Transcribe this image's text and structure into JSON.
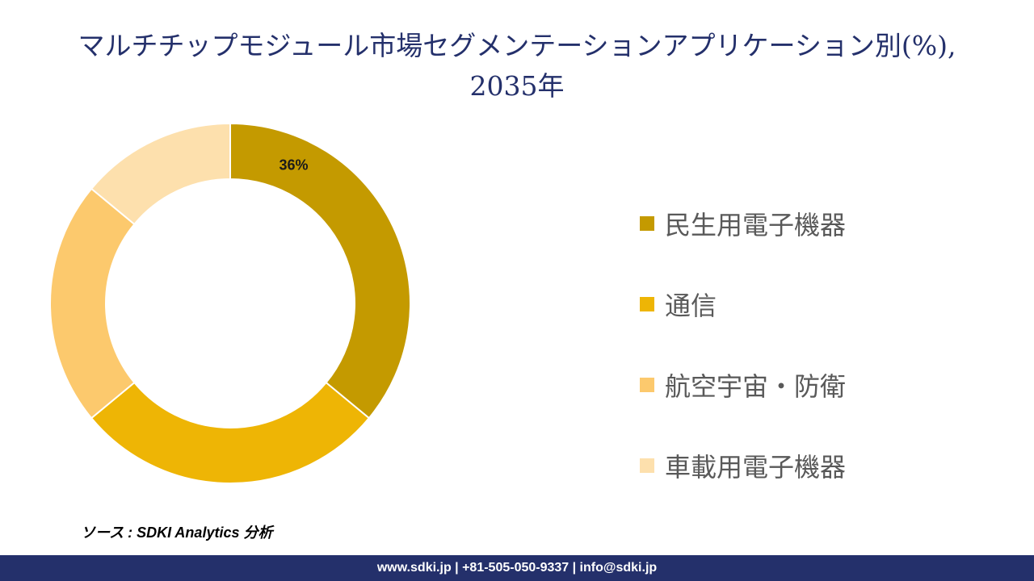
{
  "title": {
    "line1": "マルチチップモジュール市場セグメンテーションアプリケーション別(%),",
    "line2": "2035年"
  },
  "chart_data": {
    "type": "pie",
    "donut": true,
    "categories": [
      "民生用電子機器",
      "通信",
      "航空宇宙・防衛",
      "車載用電子機器"
    ],
    "values": [
      36,
      28,
      22,
      14
    ],
    "colors": [
      "#c49a00",
      "#eeb505",
      "#fcc96d",
      "#fde0ad"
    ],
    "data_labels": [
      "36%",
      "",
      "",
      ""
    ],
    "legend_position": "right"
  },
  "source": "ソース : SDKI Analytics 分析",
  "footer": "www.sdki.jp | +81-505-050-9337 | info@sdki.jp"
}
